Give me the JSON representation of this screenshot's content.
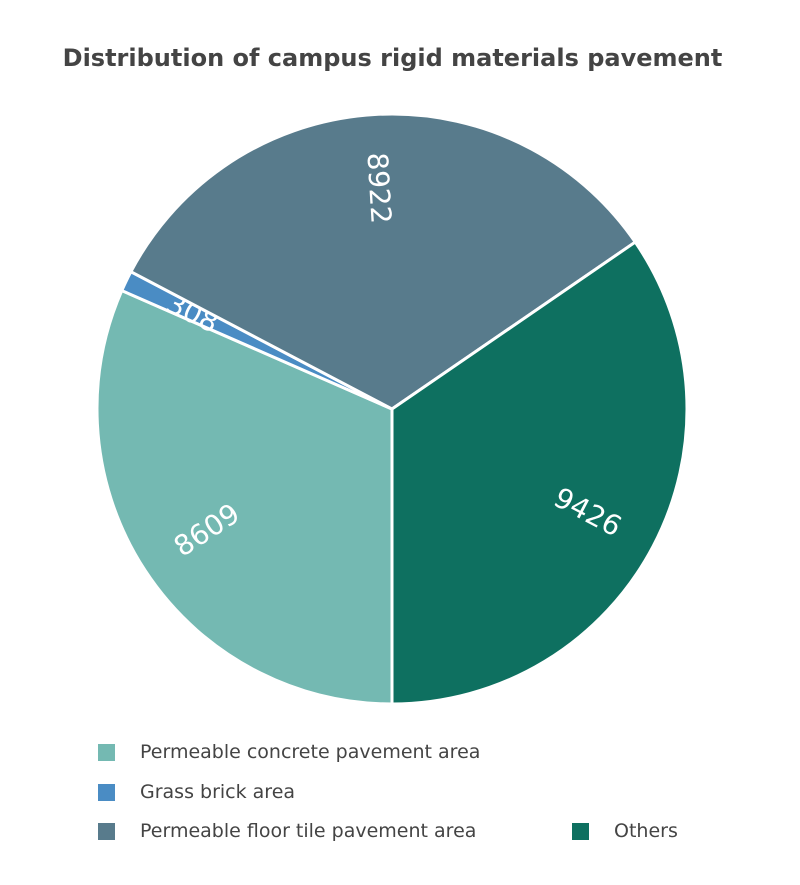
{
  "chart_data": {
    "type": "pie",
    "title": "Distribution of campus rigid materials pavement",
    "categories": [
      "Permeable concrete pavement area",
      "Grass brick area",
      "Permeable floor tile pavement area",
      "Others"
    ],
    "values": [
      8609,
      308,
      8922,
      9426
    ],
    "colors": [
      "#74b9b2",
      "#4a8cc4",
      "#587b8c",
      "#0e7060"
    ],
    "legend_position": "bottom-left",
    "start_angle": "bottom, clockwise"
  }
}
